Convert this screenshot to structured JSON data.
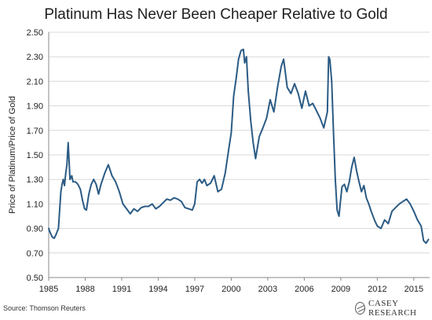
{
  "chart_data": {
    "type": "line",
    "title": "Platinum Has Never Been Cheaper Relative to Gold",
    "xlabel": "",
    "ylabel": "Price of Platinum/Price of Gold",
    "xlim": [
      1985,
      2016.3
    ],
    "ylim": [
      0.5,
      2.5
    ],
    "x_ticks": [
      1985,
      1988,
      1991,
      1994,
      1997,
      2000,
      2003,
      2006,
      2009,
      2012,
      2015
    ],
    "y_ticks": [
      "0.50",
      "0.70",
      "0.90",
      "1.10",
      "1.30",
      "1.50",
      "1.70",
      "1.90",
      "2.10",
      "2.30",
      "2.50"
    ],
    "grid": true,
    "line_color": "#2b5b84",
    "series": [
      {
        "x": [
          1985.0,
          1985.15,
          1985.3,
          1985.45,
          1985.6,
          1985.8,
          1986.0,
          1986.1,
          1986.2,
          1986.3,
          1986.4,
          1986.5,
          1986.6,
          1986.75,
          1986.9,
          1987.0,
          1987.2,
          1987.4,
          1987.6,
          1987.8,
          1987.95,
          1988.1,
          1988.3,
          1988.5,
          1988.7,
          1988.9,
          1989.1,
          1989.3,
          1989.6,
          1989.9,
          1990.2,
          1990.5,
          1990.8,
          1991.1,
          1991.4,
          1991.7,
          1992.0,
          1992.3,
          1992.6,
          1992.9,
          1993.2,
          1993.5,
          1993.8,
          1994.1,
          1994.4,
          1994.7,
          1995.0,
          1995.3,
          1995.6,
          1995.9,
          1996.2,
          1996.5,
          1996.8,
          1997.0,
          1997.2,
          1997.4,
          1997.6,
          1997.8,
          1998.0,
          1998.3,
          1998.6,
          1998.9,
          1999.2,
          1999.5,
          1999.8,
          2000.0,
          2000.2,
          2000.4,
          2000.6,
          2000.8,
          2001.0,
          2001.1,
          2001.25,
          2001.4,
          2001.6,
          2001.8,
          2002.0,
          2002.3,
          2002.6,
          2002.9,
          2003.2,
          2003.5,
          2003.8,
          2004.1,
          2004.3,
          2004.6,
          2004.9,
          2005.2,
          2005.5,
          2005.8,
          2006.1,
          2006.4,
          2006.7,
          2007.0,
          2007.3,
          2007.6,
          2007.9,
          2008.0,
          2008.1,
          2008.25,
          2008.4,
          2008.55,
          2008.7,
          2008.85,
          2008.95,
          2009.1,
          2009.3,
          2009.5,
          2009.7,
          2009.9,
          2010.1,
          2010.3,
          2010.5,
          2010.7,
          2010.9,
          2011.1,
          2011.3,
          2011.5,
          2011.8,
          2012.0,
          2012.3,
          2012.6,
          2012.9,
          2013.2,
          2013.5,
          2013.8,
          2014.1,
          2014.4,
          2014.7,
          2015.0,
          2015.3,
          2015.6,
          2015.8,
          2016.0,
          2016.2
        ],
        "y": [
          0.9,
          0.86,
          0.83,
          0.82,
          0.85,
          0.9,
          1.2,
          1.26,
          1.3,
          1.25,
          1.35,
          1.42,
          1.6,
          1.3,
          1.33,
          1.28,
          1.28,
          1.26,
          1.22,
          1.12,
          1.06,
          1.05,
          1.18,
          1.26,
          1.3,
          1.26,
          1.18,
          1.26,
          1.35,
          1.42,
          1.33,
          1.28,
          1.2,
          1.1,
          1.06,
          1.02,
          1.06,
          1.04,
          1.07,
          1.08,
          1.08,
          1.1,
          1.06,
          1.08,
          1.11,
          1.14,
          1.13,
          1.15,
          1.14,
          1.12,
          1.07,
          1.06,
          1.05,
          1.1,
          1.28,
          1.3,
          1.27,
          1.3,
          1.25,
          1.27,
          1.33,
          1.2,
          1.22,
          1.35,
          1.55,
          1.68,
          1.98,
          2.12,
          2.28,
          2.35,
          2.36,
          2.25,
          2.3,
          2.02,
          1.78,
          1.6,
          1.47,
          1.65,
          1.72,
          1.8,
          1.95,
          1.85,
          2.05,
          2.22,
          2.28,
          2.05,
          2.0,
          2.08,
          2.0,
          1.88,
          2.02,
          1.9,
          1.92,
          1.86,
          1.8,
          1.72,
          1.85,
          2.3,
          2.28,
          2.1,
          1.68,
          1.3,
          1.05,
          1.0,
          1.1,
          1.24,
          1.26,
          1.2,
          1.28,
          1.4,
          1.48,
          1.37,
          1.28,
          1.2,
          1.25,
          1.15,
          1.1,
          1.04,
          0.96,
          0.92,
          0.9,
          0.97,
          0.94,
          1.04,
          1.07,
          1.1,
          1.12,
          1.14,
          1.1,
          1.04,
          0.97,
          0.92,
          0.8,
          0.78,
          0.81
        ]
      }
    ]
  },
  "source": "Source: Thomson Reuters",
  "logo": {
    "icon": "casey-research-logo-icon",
    "text": "CASEY RESEARCH"
  }
}
